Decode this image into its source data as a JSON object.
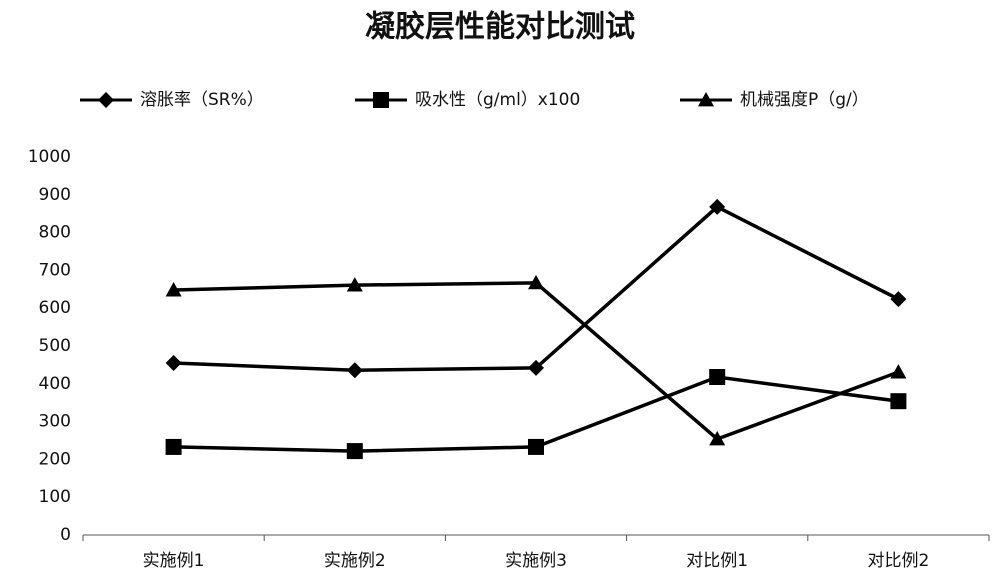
{
  "chart_data": {
    "type": "line",
    "title": "凝胶层性能对比测试",
    "categories": [
      "实施例1",
      "实施例2",
      "实施例3",
      "对比例1",
      "对比例2"
    ],
    "series": [
      {
        "name": "溶胀率（SR%）",
        "color": "#000000",
        "marker": "diamond",
        "values": [
          455,
          436,
          442,
          868,
          624
        ]
      },
      {
        "name": "吸水性（g/ml）x100",
        "color": "#000000",
        "marker": "square",
        "values": [
          233,
          222,
          233,
          418,
          354
        ]
      },
      {
        "name": "机械强度P（g/）",
        "color": "#000000",
        "marker": "triangle",
        "values": [
          648,
          661,
          667,
          254,
          431
        ]
      }
    ],
    "ylim": [
      0,
      1000
    ],
    "yticks": [
      0,
      100,
      200,
      300,
      400,
      500,
      600,
      700,
      800,
      900,
      1000
    ],
    "grid": false,
    "legend": "top"
  }
}
